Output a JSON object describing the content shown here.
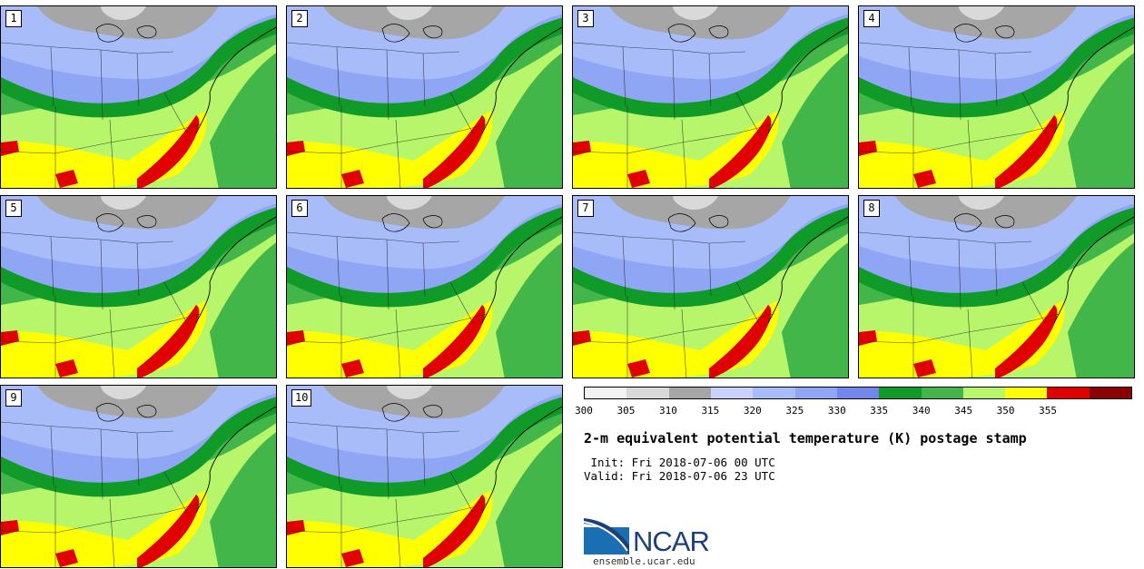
{
  "panels": [
    {
      "label": "1"
    },
    {
      "label": "2"
    },
    {
      "label": "3"
    },
    {
      "label": "4"
    },
    {
      "label": "5"
    },
    {
      "label": "6"
    },
    {
      "label": "7"
    },
    {
      "label": "8"
    },
    {
      "label": "9"
    },
    {
      "label": "10"
    }
  ],
  "colorbar": {
    "colors": [
      "#f2f2f2",
      "#d9d9d9",
      "#a6a6a6",
      "#c7d3fb",
      "#a9bcfa",
      "#8fa6f4",
      "#7286ee",
      "#109a28",
      "#43b64a",
      "#b7f56a",
      "#ffff00",
      "#e00000",
      "#8b0000"
    ],
    "ticks": [
      "300",
      "305",
      "310",
      "315",
      "320",
      "325",
      "330",
      "335",
      "340",
      "345",
      "350",
      "355"
    ]
  },
  "title": "2-m equivalent potential temperature (K) postage stamp",
  "init": " Init: Fri 2018-07-06 00 UTC",
  "valid": "Valid: Fri 2018-07-06 23 UTC",
  "logo": {
    "text": "NCAR",
    "url": "ensemble.ucar.edu"
  }
}
